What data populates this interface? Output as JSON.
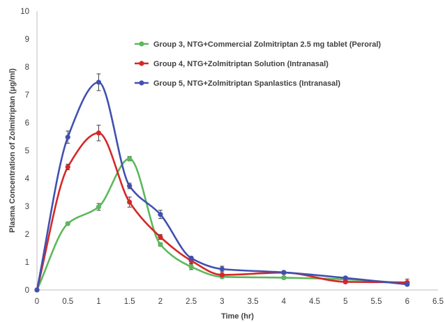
{
  "chart_data": {
    "type": "line",
    "xlabel": "Time (hr)",
    "ylabel": "Plasma Concentration of Zolmitriptan (μg/ml)",
    "xlim": [
      0,
      6.5
    ],
    "ylim": [
      0,
      10
    ],
    "xticks": [
      "0",
      "0.5",
      "1",
      "1.5",
      "2",
      "2.5",
      "3",
      "3.5",
      "4",
      "4.5",
      "5",
      "5.5",
      "6",
      "6.5"
    ],
    "yticks": [
      "0",
      "1",
      "2",
      "3",
      "4",
      "5",
      "6",
      "7",
      "8",
      "9",
      "10"
    ],
    "grid": false,
    "legend_position": "top-right",
    "smooth": true,
    "series": [
      {
        "name": "Group 3, NTG+Commercial Zolmitriptan 2.5 mg tablet (Peroral)",
        "color": "#5cb85c",
        "x": [
          0,
          0.5,
          1,
          1.5,
          2,
          2.5,
          3,
          4,
          5,
          6
        ],
        "y": [
          0,
          2.38,
          2.98,
          4.71,
          1.63,
          0.83,
          0.47,
          0.44,
          0.38,
          0.24
        ],
        "err": [
          0,
          0.05,
          0.12,
          0.08,
          0.06,
          0.1,
          0.05,
          0.05,
          0.04,
          0.04
        ]
      },
      {
        "name": "Group 4, NTG+Zolmitriptan  Solution (Intranasal)",
        "color": "#d62728",
        "x": [
          0,
          0.5,
          1,
          1.5,
          2,
          2.5,
          3,
          4,
          5,
          6
        ],
        "y": [
          0,
          4.41,
          5.63,
          3.15,
          1.9,
          1.05,
          0.54,
          0.62,
          0.29,
          0.27
        ],
        "err": [
          0,
          0.1,
          0.28,
          0.18,
          0.09,
          0.1,
          0.05,
          0.05,
          0.05,
          0.12
        ]
      },
      {
        "name": "Group 5, NTG+Zolmitriptan Spanlastics (Intranasal)",
        "color": "#4050b0",
        "x": [
          0,
          0.5,
          1,
          1.5,
          2,
          2.5,
          3,
          4,
          5,
          6
        ],
        "y": [
          0,
          5.48,
          7.45,
          3.73,
          2.71,
          1.14,
          0.75,
          0.63,
          0.43,
          0.2
        ],
        "err": [
          0,
          0.22,
          0.3,
          0.1,
          0.15,
          0.06,
          0.1,
          0.05,
          0.05,
          0.04
        ]
      }
    ]
  }
}
